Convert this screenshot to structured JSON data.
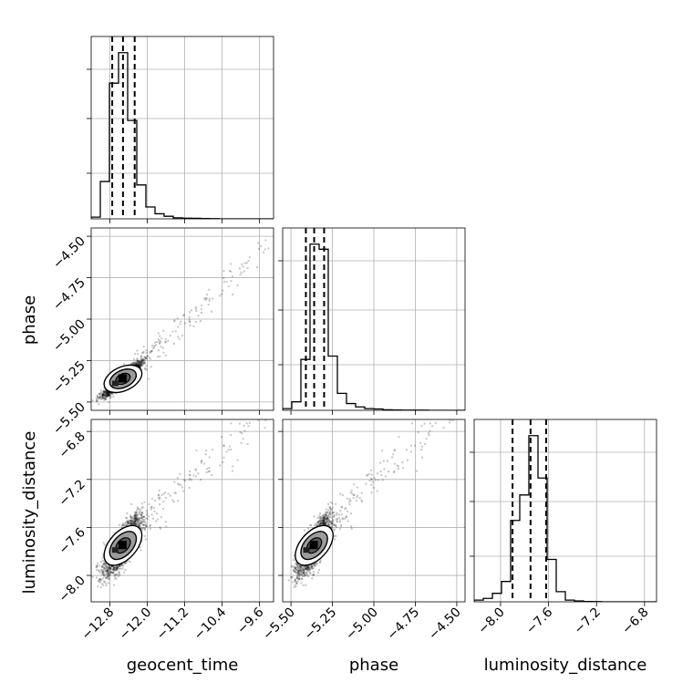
{
  "chart_data": {
    "type": "corner",
    "parameters": [
      "geocent_time",
      "phase",
      "luminosity_distance"
    ],
    "ranges": {
      "geocent_time": [
        -13.2,
        -9.3
      ],
      "phase": [
        -5.55,
        -4.45
      ],
      "luminosity_distance": [
        -8.22,
        -6.7
      ]
    },
    "ticks": {
      "geocent_time": {
        "values": [
          -12.8,
          -12.0,
          -11.2,
          -10.4,
          -9.6
        ],
        "labels": [
          "−12.8",
          "−12.0",
          "−11.2",
          "−10.4",
          "−9.6"
        ]
      },
      "phase": {
        "values": [
          -5.5,
          -5.25,
          -5.0,
          -4.75,
          -4.5
        ],
        "labels": [
          "−5.50",
          "−5.25",
          "−5.00",
          "−4.75",
          "−4.50"
        ]
      },
      "luminosity_distance": {
        "values": [
          -8.0,
          -7.6,
          -7.2,
          -6.8
        ],
        "labels": [
          "−8.0",
          "−7.6",
          "−7.2",
          "−6.8"
        ]
      }
    },
    "histograms": {
      "geocent_time": {
        "edges_start": -13.2,
        "bin_width": 0.195,
        "counts": [
          0.01,
          0.22,
          0.8,
          0.98,
          0.58,
          0.2,
          0.07,
          0.03,
          0.015,
          0.006,
          0.004,
          0.003,
          0.002,
          0.001,
          0,
          0,
          0,
          0,
          0,
          0
        ]
      },
      "phase": {
        "edges_start": -5.55,
        "bin_width": 0.055,
        "counts": [
          0.01,
          0.05,
          0.3,
          0.98,
          0.95,
          0.32,
          0.1,
          0.04,
          0.02,
          0.01,
          0.008,
          0.003,
          0.002,
          0.001,
          0.001,
          0.001,
          0,
          0,
          0,
          0
        ]
      },
      "luminosity_distance": {
        "edges_start": -8.22,
        "bin_width": 0.076,
        "counts": [
          0.01,
          0.02,
          0.05,
          0.12,
          0.48,
          0.63,
          0.98,
          0.73,
          0.25,
          0.06,
          0.01,
          0.005,
          0.002,
          0.001,
          0,
          0,
          0,
          0,
          0,
          0
        ]
      }
    },
    "quantile_lines": {
      "geocent_time": [
        -12.75,
        -12.52,
        -12.27
      ],
      "phase": [
        -5.41,
        -5.36,
        -5.3
      ],
      "luminosity_distance": [
        -7.9,
        -7.75,
        -7.62
      ]
    },
    "grid": true,
    "point_color": "#000000",
    "contour_color": "#000000"
  }
}
